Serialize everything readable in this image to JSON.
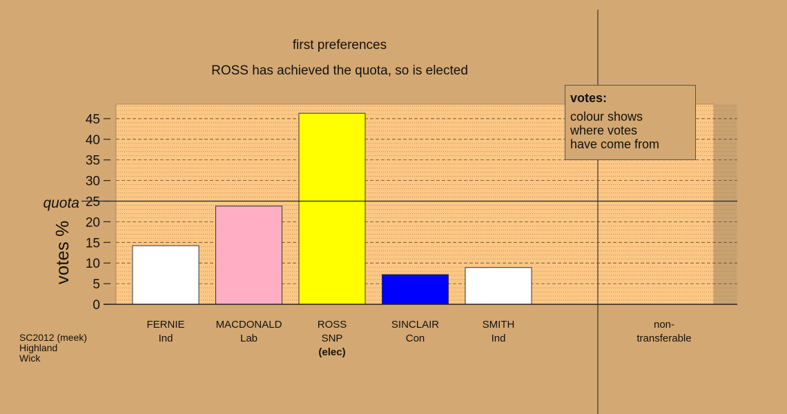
{
  "chart_data": {
    "type": "bar",
    "title": "first preferences",
    "subtitle": "ROSS has achieved the quota, so is elected",
    "ylabel": "votes %",
    "ylim": [
      0,
      48.5
    ],
    "yticks": [
      0,
      5,
      10,
      15,
      20,
      25,
      30,
      35,
      40,
      45
    ],
    "quota": {
      "label": "quota",
      "value": 25
    },
    "categories": [
      {
        "name": "FERNIE",
        "party": "Ind",
        "value": 14.2,
        "color": "#ffffff",
        "note": ""
      },
      {
        "name": "MACDONALD",
        "party": "Lab",
        "value": 23.8,
        "color": "#ffaec4",
        "note": ""
      },
      {
        "name": "ROSS",
        "party": "SNP",
        "value": 46.3,
        "color": "#ffff00",
        "note": "(elec)"
      },
      {
        "name": "SINCLAIR",
        "party": "Con",
        "value": 7.2,
        "color": "#0000ff",
        "note": ""
      },
      {
        "name": "SMITH",
        "party": "Ind",
        "value": 8.9,
        "color": "#ffffff",
        "note": ""
      }
    ],
    "nontransferable": {
      "label_line1": "non-",
      "label_line2": "transferable",
      "value": 0
    },
    "legend": {
      "title": "votes:",
      "lines": [
        "colour shows",
        "where votes",
        "have come from"
      ]
    },
    "source": [
      "SC2012 (meek)",
      "Highland",
      "Wick"
    ],
    "colors": {
      "background": "#d4a872",
      "plot_area": "#fcc784",
      "nontransferable_area": "#c9a272"
    }
  }
}
